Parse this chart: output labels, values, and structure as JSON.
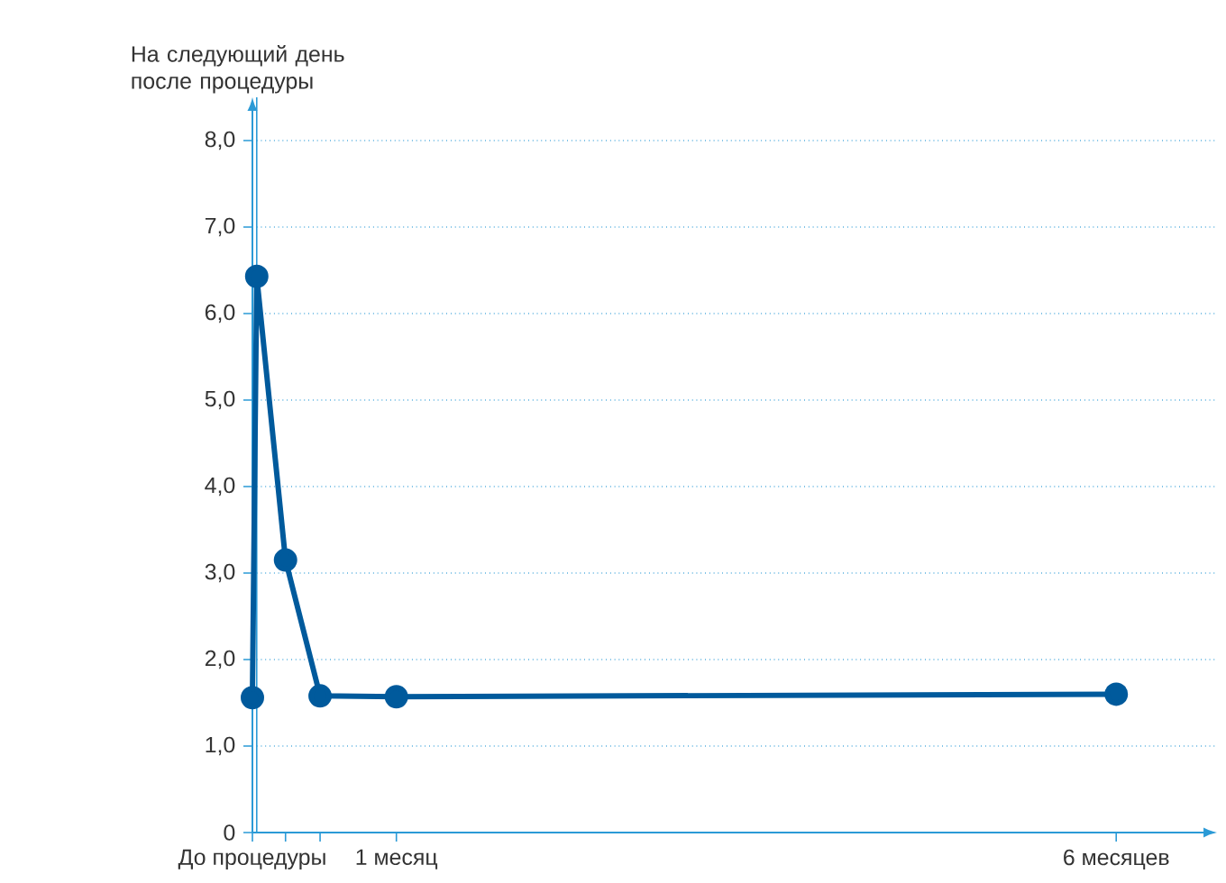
{
  "chart_data": {
    "type": "line",
    "x": [
      0,
      0.03,
      0.23,
      0.47,
      1,
      6
    ],
    "values": [
      1.56,
      6.43,
      3.15,
      1.58,
      1.57,
      1.6
    ],
    "color": "#005a9c",
    "marker": "circle",
    "line_style": "solid",
    "xlim": [
      0,
      6.7
    ],
    "ylim": [
      0,
      8.5
    ],
    "xticks": [
      {
        "value": 0,
        "label": "До процедуры"
      },
      {
        "value": 0.23,
        "label": null
      },
      {
        "value": 0.47,
        "label": null
      },
      {
        "value": 1,
        "label": "1 месяц"
      },
      {
        "value": 6,
        "label": "6 месяцев"
      }
    ],
    "yticks": [
      0,
      {
        "value": 1,
        "label": "1,0"
      },
      {
        "value": 2,
        "label": "2,0"
      },
      {
        "value": 3,
        "label": "3,0"
      },
      {
        "value": 4,
        "label": "4,0"
      },
      {
        "value": 5,
        "label": "5,0"
      },
      {
        "value": 6,
        "label": "6,0"
      },
      {
        "value": 7,
        "label": "7,0"
      },
      {
        "value": 8,
        "label": "8,0"
      }
    ],
    "grid": "y",
    "ref_lines": [
      {
        "axis": "x",
        "value": 0.03,
        "label": "На следующий день после процедуры",
        "color": "#2b9ad6"
      }
    ]
  }
}
